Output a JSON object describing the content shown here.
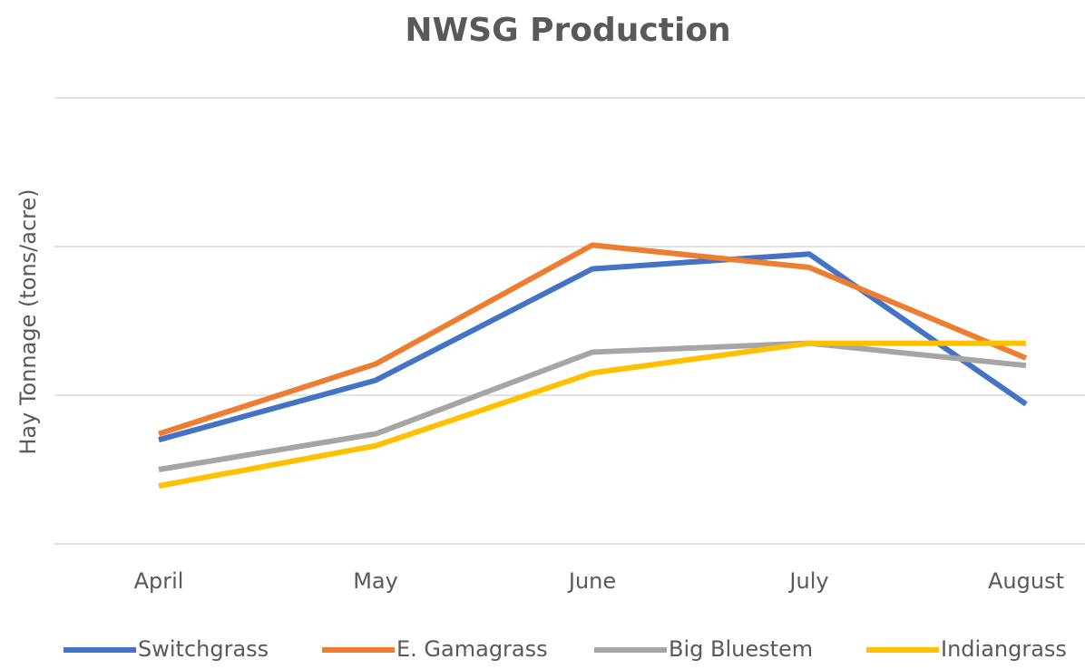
{
  "chart_data": {
    "type": "line",
    "title": "NWSG Production",
    "y_label": "Hay Tonnage (tons/acre)",
    "categories": [
      "April",
      "May",
      "June",
      "July",
      "August"
    ],
    "series": [
      {
        "name": "Switchgrass",
        "color": "#4472c4",
        "values": [
          0.7,
          1.1,
          1.85,
          1.95,
          0.94
        ]
      },
      {
        "name": "E. Gamagrass",
        "color": "#ed7d31",
        "values": [
          0.74,
          1.21,
          2.01,
          1.86,
          1.25
        ]
      },
      {
        "name": "Big Bluestem",
        "color": "#a5a5a5",
        "values": [
          0.5,
          0.74,
          1.29,
          1.35,
          1.2
        ]
      },
      {
        "name": "Indiangrass",
        "color": "#ffc000",
        "values": [
          0.39,
          0.66,
          1.15,
          1.35,
          1.35
        ]
      }
    ],
    "ylim": [
      0,
      3
    ],
    "yticks": [
      0,
      1,
      2,
      3
    ],
    "grid": true,
    "y_tick_labels": false,
    "legend": "bottom"
  }
}
